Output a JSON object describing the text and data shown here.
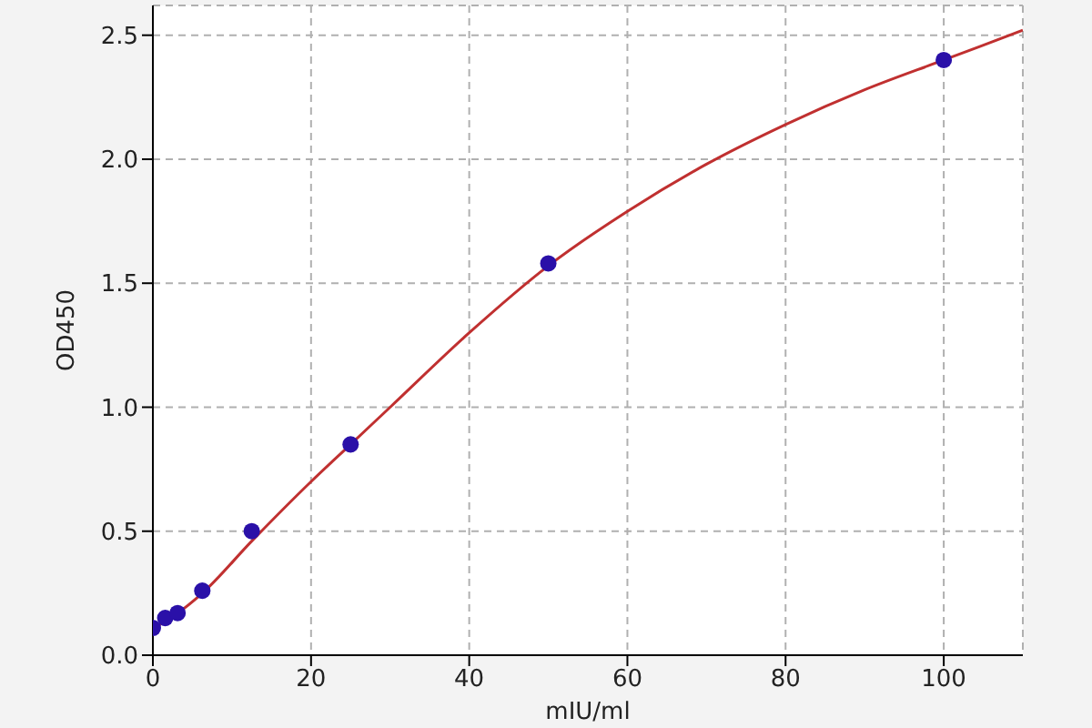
{
  "chart_data": {
    "type": "scatter",
    "xlabel": "mIU/ml",
    "ylabel": "OD450",
    "xlim": [
      0,
      110
    ],
    "ylim": [
      0,
      2.62
    ],
    "xticks": [
      0,
      20,
      40,
      60,
      80,
      100
    ],
    "yticks": [
      {
        "value": 0,
        "label": "0.0"
      },
      {
        "value": 0.5,
        "label": "0.5"
      },
      {
        "value": 1,
        "label": "1.0"
      },
      {
        "value": 1.5,
        "label": "1.5"
      },
      {
        "value": 2,
        "label": "2.0"
      },
      {
        "value": 2.5,
        "label": "2.5"
      }
    ],
    "grid": true,
    "marker": "circle",
    "series": [
      {
        "type": "line",
        "marker": "none",
        "color": "#c03030",
        "line_style": "solid",
        "x": [
          0,
          1.56,
          3.125,
          6.25,
          12.5,
          20,
          25,
          30,
          40,
          50,
          60,
          70,
          80,
          90,
          100,
          110
        ],
        "values": [
          0.1,
          0.14,
          0.17,
          0.25,
          0.46,
          0.7,
          0.85,
          1.0,
          1.3,
          1.57,
          1.79,
          1.98,
          2.14,
          2.28,
          2.4,
          2.52
        ]
      },
      {
        "color": "#2a10a8",
        "x": [
          0,
          1.56,
          3.125,
          6.25,
          12.5,
          25,
          50,
          100
        ],
        "values": [
          0.11,
          0.15,
          0.17,
          0.26,
          0.5,
          0.85,
          1.58,
          2.4
        ]
      }
    ]
  }
}
